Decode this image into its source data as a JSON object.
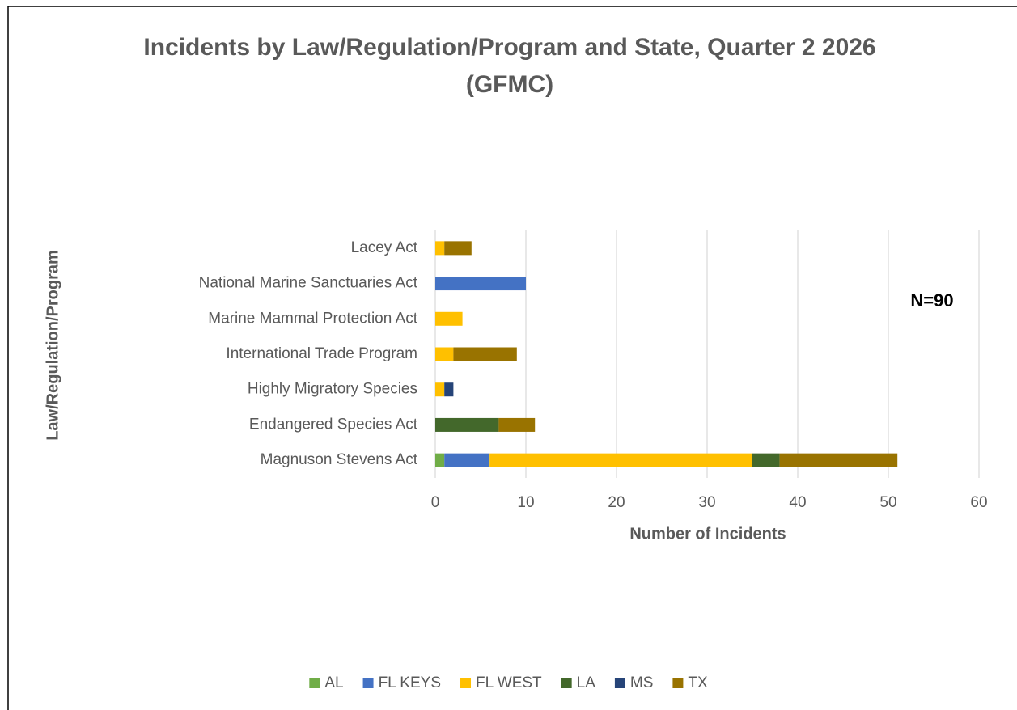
{
  "chart_data": {
    "type": "stacked-bar-horizontal",
    "title": "Incidents by Law/Regulation/Program and State, Quarter 2 2026 (GFMC)",
    "x_label": "Number of Incidents",
    "y_label": "Law/Regulation/Program",
    "annotation": "N=90",
    "categories": [
      "Magnuson Stevens Act",
      "Endangered Species Act",
      "Highly Migratory Species",
      "International Trade Program",
      "Marine Mammal Protection Act",
      "National Marine Sanctuaries Act",
      "Lacey Act"
    ],
    "series": [
      {
        "name": "AL",
        "color": "#70ad47",
        "values": [
          1,
          0,
          0,
          0,
          0,
          0,
          0
        ]
      },
      {
        "name": "FL KEYS",
        "color": "#4472c4",
        "values": [
          5,
          0,
          0,
          0,
          0,
          10,
          0
        ]
      },
      {
        "name": "FL WEST",
        "color": "#ffc000",
        "values": [
          29,
          0,
          1,
          2,
          3,
          0,
          1
        ]
      },
      {
        "name": "LA",
        "color": "#43682b",
        "values": [
          3,
          7,
          0,
          0,
          0,
          0,
          0
        ]
      },
      {
        "name": "MS",
        "color": "#264478",
        "values": [
          0,
          0,
          1,
          0,
          0,
          0,
          0
        ]
      },
      {
        "name": "TX",
        "color": "#997300",
        "values": [
          13,
          4,
          0,
          7,
          0,
          0,
          3
        ]
      }
    ],
    "xlim": [
      0,
      60
    ],
    "xticks": [
      0,
      10,
      20,
      30,
      40,
      50,
      60
    ],
    "grid": true,
    "legend": "bottom"
  }
}
